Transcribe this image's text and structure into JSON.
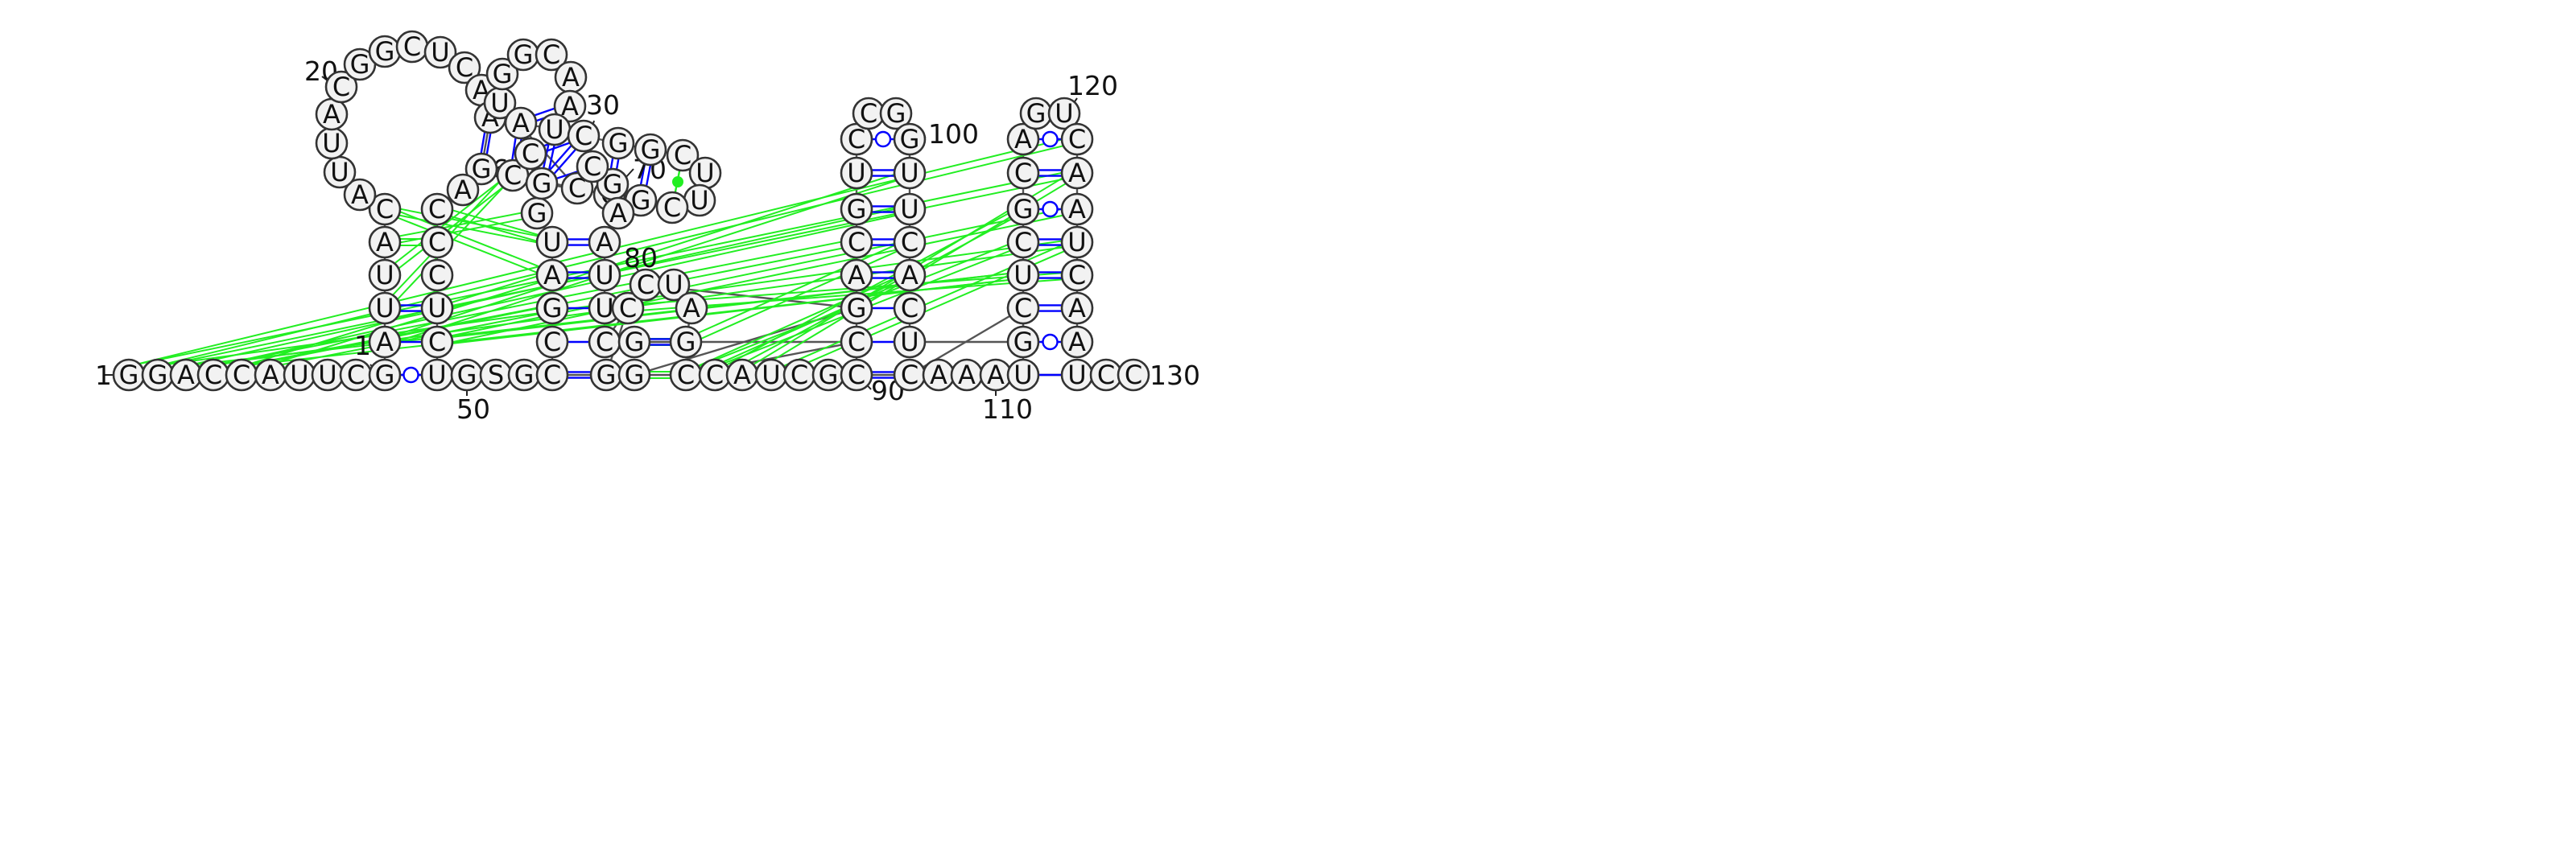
{
  "diagram": {
    "type": "rna-secondary-structure",
    "sequence": [
      "G",
      "G",
      "A",
      "C",
      "C",
      "A",
      "U",
      "U",
      "C",
      "G",
      "U",
      "G",
      "S",
      "G",
      "C",
      "G",
      "G",
      "C",
      "C",
      "A",
      "U",
      "C",
      "G",
      "C",
      "C",
      "A",
      "A",
      "A",
      "U",
      "U",
      "C",
      "C",
      "A",
      "U",
      "U",
      "A",
      "C",
      "A",
      "U",
      "U",
      "A",
      "C",
      "G",
      "G",
      "C",
      "U",
      "C",
      "A",
      "A",
      "G",
      "A",
      "C",
      "C",
      "C",
      "U",
      "C",
      "C",
      "C",
      "G",
      "U",
      "A",
      "G",
      "C",
      "U",
      "G",
      "G",
      "C",
      "A",
      "A",
      "U",
      "A",
      "G",
      "C",
      "C",
      "G",
      "C",
      "C",
      "G",
      "G",
      "C",
      "U",
      "U",
      "C",
      "G",
      "A",
      "A",
      "U",
      "U",
      "C",
      "C",
      "C",
      "U",
      "A",
      "G",
      "G",
      "C",
      "G",
      "A",
      "C",
      "G",
      "U",
      "C",
      "C",
      "G",
      "G",
      "U",
      "U",
      "C",
      "A",
      "C",
      "U",
      "G",
      "C",
      "U",
      "C",
      "G",
      "C",
      "A",
      "G",
      "U",
      "C",
      "A",
      "A",
      "U",
      "C",
      "A",
      "A",
      "U",
      "U",
      "C"
    ],
    "position_labels": [
      "1",
      "10",
      "20",
      "30",
      "50",
      "60",
      "70",
      "80",
      "90",
      "100",
      "110",
      "120",
      "130"
    ],
    "canonical_pairs": "blue double line",
    "wobble_pairs": "blue line with open circle",
    "tertiary_interactions": "green lines",
    "colors": {
      "nucleotide_fill": "#f2f2f2",
      "nucleotide_stroke": "#333333",
      "backbone": "#555555",
      "pair": "#0000ff",
      "tertiary": "#22ee22"
    }
  }
}
